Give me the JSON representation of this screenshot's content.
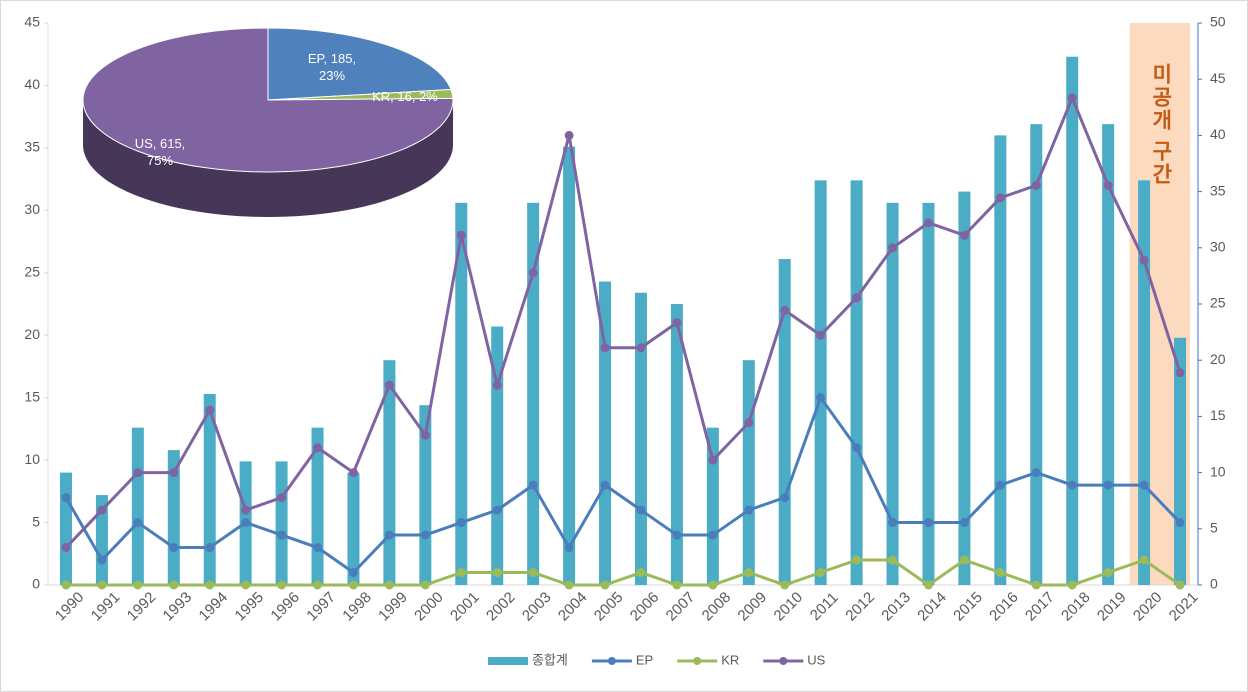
{
  "chart_data": [
    {
      "type": "combo",
      "categories": [
        "1990",
        "1991",
        "1992",
        "1993",
        "1994",
        "1995",
        "1996",
        "1997",
        "1998",
        "1999",
        "2000",
        "2001",
        "2002",
        "2003",
        "2004",
        "2005",
        "2006",
        "2007",
        "2008",
        "2009",
        "2010",
        "2011",
        "2012",
        "2013",
        "2014",
        "2015",
        "2016",
        "2017",
        "2018",
        "2019",
        "2020",
        "2021"
      ],
      "series": [
        {
          "name": "종합계",
          "type": "bar",
          "axis": "y2",
          "color": "#4bacc6",
          "values": [
            10,
            8,
            14,
            12,
            17,
            11,
            11,
            14,
            10,
            20,
            16,
            34,
            23,
            34,
            39,
            27,
            26,
            25,
            14,
            20,
            29,
            36,
            36,
            34,
            34,
            35,
            40,
            41,
            47,
            41,
            36,
            22
          ]
        },
        {
          "name": "EP",
          "type": "line",
          "color": "#4a7ebb",
          "values": [
            7,
            2,
            5,
            3,
            3,
            5,
            4,
            3,
            1,
            4,
            4,
            5,
            6,
            8,
            3,
            8,
            6,
            4,
            4,
            6,
            7,
            15,
            11,
            5,
            5,
            5,
            8,
            9,
            8,
            8,
            8,
            5
          ]
        },
        {
          "name": "KR",
          "type": "line",
          "color": "#9bbb59",
          "values": [
            0,
            0,
            0,
            0,
            0,
            0,
            0,
            0,
            0,
            0,
            0,
            1,
            1,
            1,
            0,
            0,
            1,
            0,
            0,
            1,
            0,
            1,
            2,
            2,
            0,
            2,
            1,
            0,
            0,
            1,
            2,
            0
          ]
        },
        {
          "name": "US",
          "type": "line",
          "color": "#8064a2",
          "values": [
            3,
            6,
            9,
            9,
            14,
            6,
            7,
            11,
            9,
            16,
            12,
            28,
            16,
            25,
            36,
            19,
            19,
            21,
            10,
            13,
            22,
            20,
            23,
            27,
            29,
            28,
            31,
            32,
            39,
            32,
            26,
            17
          ]
        }
      ],
      "ylim": [
        0,
        45
      ],
      "yticks": [
        0,
        5,
        10,
        15,
        20,
        25,
        30,
        35,
        40,
        45
      ],
      "y2lim": [
        0,
        50
      ],
      "y2ticks": [
        0,
        5,
        10,
        15,
        20,
        25,
        30,
        35,
        40,
        45,
        50
      ],
      "legend": "bottom",
      "annotation": {
        "text": "미공개 구간",
        "from": "2020",
        "color": "#fbd4b4",
        "text_color": "#c55a11"
      }
    },
    {
      "type": "pie",
      "values": [
        185,
        16,
        615
      ],
      "value_labels": [
        "EP, 185, 23%",
        "KR, 16, 2%",
        "US, 615, 75%"
      ],
      "colors": [
        "#4f81bd",
        "#9bbb59",
        "#8064a2"
      ]
    }
  ]
}
